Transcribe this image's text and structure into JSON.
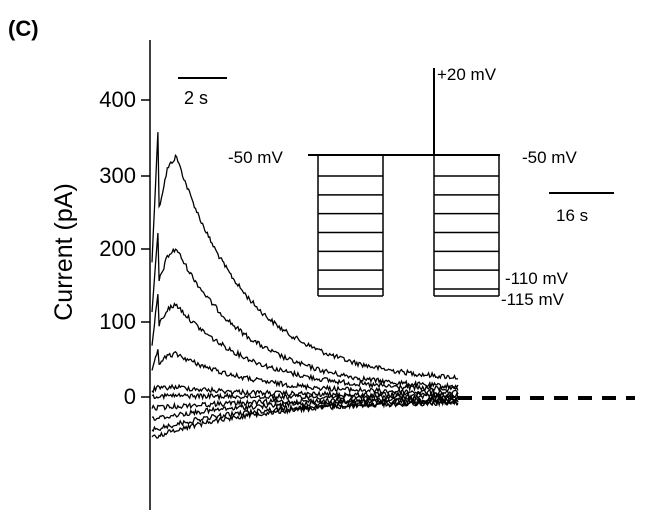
{
  "chart_data": {
    "type": "line",
    "panel_label": "(C)",
    "ylabel": "Current (pA)",
    "xlabel": "",
    "ylim": [
      -100,
      450
    ],
    "xlim_s": [
      0,
      21
    ],
    "grid": false,
    "legend": "none",
    "y_ticks": [
      "400",
      "300",
      "200",
      "100",
      "0"
    ],
    "y_tick_values": [
      400,
      300,
      200,
      100,
      0
    ],
    "scale_bar_label": "2 s",
    "zero_line_style": "dashed",
    "series": [
      {
        "peak": 365,
        "end": 20
      },
      {
        "peak": 225,
        "end": 10
      },
      {
        "peak": 140,
        "end": 8
      },
      {
        "peak": 65,
        "end": 5
      },
      {
        "peak": 15,
        "end": 2
      },
      {
        "peak": 2,
        "end": 0
      },
      {
        "peak": -15,
        "end": -3
      },
      {
        "peak": -30,
        "end": -3
      },
      {
        "peak": -45,
        "end": -5
      },
      {
        "peak": -55,
        "end": -5
      }
    ],
    "inset": {
      "labels": {
        "top": "+20 mV",
        "hold_left": "-50 mV",
        "hold_right": "-50 mV",
        "step_low_1": "-110 mV",
        "step_low_2": "-115 mV",
        "scale_bar": "16 s"
      },
      "step_count": 7
    }
  }
}
